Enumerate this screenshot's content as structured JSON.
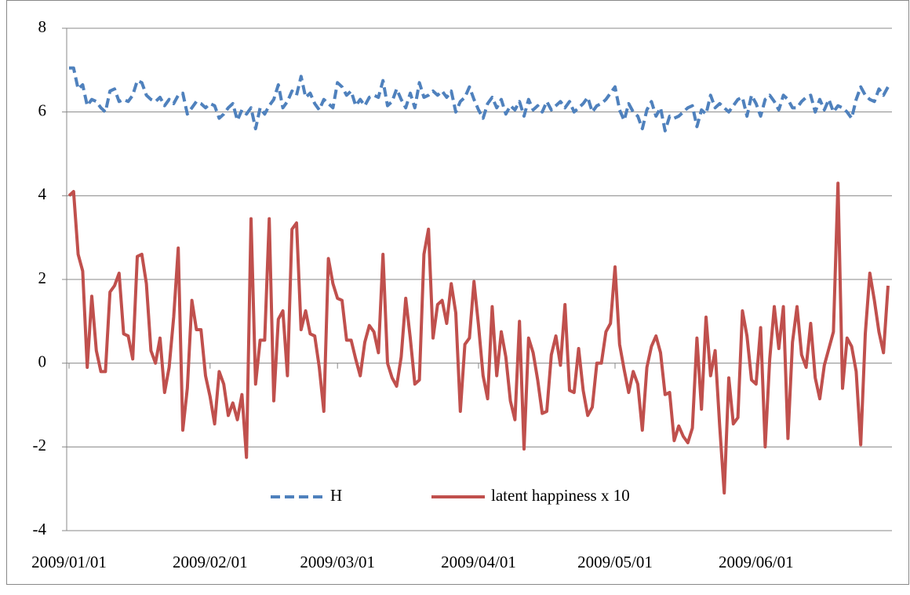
{
  "chart_data": {
    "type": "line",
    "x": [
      "2009/01/01",
      "2009/01/02",
      "2009/01/03",
      "2009/01/04",
      "2009/01/05",
      "2009/01/06",
      "2009/01/07",
      "2009/01/08",
      "2009/01/09",
      "2009/01/10",
      "2009/01/11",
      "2009/01/12",
      "2009/01/13",
      "2009/01/14",
      "2009/01/15",
      "2009/01/16",
      "2009/01/17",
      "2009/01/18",
      "2009/01/19",
      "2009/01/20",
      "2009/01/21",
      "2009/01/22",
      "2009/01/23",
      "2009/01/24",
      "2009/01/25",
      "2009/01/26",
      "2009/01/27",
      "2009/01/28",
      "2009/01/29",
      "2009/01/30",
      "2009/01/31",
      "2009/02/01",
      "2009/02/02",
      "2009/02/03",
      "2009/02/04",
      "2009/02/05",
      "2009/02/06",
      "2009/02/07",
      "2009/02/08",
      "2009/02/09",
      "2009/02/10",
      "2009/02/11",
      "2009/02/12",
      "2009/02/13",
      "2009/02/14",
      "2009/02/15",
      "2009/02/16",
      "2009/02/17",
      "2009/02/18",
      "2009/02/19",
      "2009/02/20",
      "2009/02/21",
      "2009/02/22",
      "2009/02/23",
      "2009/02/24",
      "2009/02/25",
      "2009/02/26",
      "2009/02/27",
      "2009/02/28",
      "2009/03/01",
      "2009/03/02",
      "2009/03/03",
      "2009/03/04",
      "2009/03/05",
      "2009/03/06",
      "2009/03/07",
      "2009/03/08",
      "2009/03/09",
      "2009/03/10",
      "2009/03/11",
      "2009/03/12",
      "2009/03/13",
      "2009/03/14",
      "2009/03/15",
      "2009/03/16",
      "2009/03/17",
      "2009/03/18",
      "2009/03/19",
      "2009/03/20",
      "2009/03/21",
      "2009/03/22",
      "2009/03/23",
      "2009/03/24",
      "2009/03/25",
      "2009/03/26",
      "2009/03/27",
      "2009/03/28",
      "2009/03/29",
      "2009/03/30",
      "2009/03/31",
      "2009/04/01",
      "2009/04/02",
      "2009/04/03",
      "2009/04/04",
      "2009/04/05",
      "2009/04/06",
      "2009/04/07",
      "2009/04/08",
      "2009/04/09",
      "2009/04/10",
      "2009/04/11",
      "2009/04/12",
      "2009/04/13",
      "2009/04/14",
      "2009/04/15",
      "2009/04/16",
      "2009/04/17",
      "2009/04/18",
      "2009/04/19",
      "2009/04/20",
      "2009/04/21",
      "2009/04/22",
      "2009/04/23",
      "2009/04/24",
      "2009/04/25",
      "2009/04/26",
      "2009/04/27",
      "2009/04/28",
      "2009/04/29",
      "2009/04/30",
      "2009/05/01",
      "2009/05/02",
      "2009/05/03",
      "2009/05/04",
      "2009/05/05",
      "2009/05/06",
      "2009/05/07",
      "2009/05/08",
      "2009/05/09",
      "2009/05/10",
      "2009/05/11",
      "2009/05/12",
      "2009/05/13",
      "2009/05/14",
      "2009/05/15",
      "2009/05/16",
      "2009/05/17",
      "2009/05/18",
      "2009/05/19",
      "2009/05/20",
      "2009/05/21",
      "2009/05/22",
      "2009/05/23",
      "2009/05/24",
      "2009/05/25",
      "2009/05/26",
      "2009/05/27",
      "2009/05/28",
      "2009/05/29",
      "2009/05/30",
      "2009/05/31",
      "2009/06/01",
      "2009/06/02",
      "2009/06/03",
      "2009/06/04",
      "2009/06/05",
      "2009/06/06",
      "2009/06/07",
      "2009/06/08",
      "2009/06/09",
      "2009/06/10",
      "2009/06/11",
      "2009/06/12",
      "2009/06/13",
      "2009/06/14",
      "2009/06/15",
      "2009/06/16",
      "2009/06/17",
      "2009/06/18",
      "2009/06/19",
      "2009/06/20",
      "2009/06/21",
      "2009/06/22",
      "2009/06/23",
      "2009/06/24",
      "2009/06/25",
      "2009/06/26",
      "2009/06/27",
      "2009/06/28",
      "2009/06/29",
      "2009/06/30"
    ],
    "series": [
      {
        "name": "H",
        "color": "#4f81bd",
        "dash": true,
        "values": [
          7.05,
          7.05,
          6.55,
          6.65,
          6.15,
          6.3,
          6.25,
          6.1,
          6.0,
          6.5,
          6.55,
          6.25,
          6.3,
          6.25,
          6.4,
          6.75,
          6.7,
          6.4,
          6.3,
          6.25,
          6.35,
          6.15,
          6.3,
          6.2,
          6.4,
          6.45,
          5.95,
          6.1,
          6.25,
          6.2,
          6.1,
          6.2,
          6.15,
          5.85,
          5.95,
          6.1,
          6.2,
          5.8,
          6.05,
          5.95,
          6.1,
          5.6,
          6.1,
          5.95,
          6.15,
          6.3,
          6.65,
          6.1,
          6.25,
          6.5,
          6.4,
          6.85,
          6.35,
          6.45,
          6.2,
          6.05,
          6.3,
          6.2,
          6.1,
          6.7,
          6.6,
          6.4,
          6.5,
          6.15,
          6.3,
          6.15,
          6.35,
          6.4,
          6.35,
          6.75,
          6.15,
          6.25,
          6.55,
          6.3,
          6.1,
          6.45,
          6.1,
          6.7,
          6.35,
          6.4,
          6.5,
          6.4,
          6.5,
          6.35,
          6.5,
          6.0,
          6.25,
          6.35,
          6.6,
          6.3,
          6.05,
          5.85,
          6.2,
          6.35,
          6.1,
          6.3,
          5.95,
          6.15,
          6.05,
          6.25,
          5.9,
          6.3,
          6.05,
          6.15,
          6.0,
          6.25,
          6.05,
          6.15,
          6.25,
          6.1,
          6.25,
          6.0,
          6.1,
          6.2,
          6.35,
          6.0,
          6.15,
          6.2,
          6.3,
          6.45,
          6.6,
          6.05,
          5.8,
          6.2,
          6.0,
          5.9,
          5.6,
          6.05,
          6.25,
          5.9,
          6.1,
          5.55,
          5.9,
          5.85,
          5.9,
          6.0,
          6.1,
          6.15,
          5.65,
          6.05,
          5.95,
          6.4,
          6.1,
          6.2,
          6.1,
          6.0,
          6.15,
          6.3,
          6.35,
          5.9,
          6.4,
          6.2,
          5.9,
          6.3,
          6.4,
          6.25,
          6.05,
          6.4,
          6.3,
          6.1,
          6.1,
          6.25,
          6.35,
          6.4,
          6.0,
          6.3,
          6.05,
          6.3,
          6.0,
          6.15,
          6.1,
          6.0,
          5.85,
          6.3,
          6.6,
          6.4,
          6.3,
          6.25,
          6.55,
          6.4,
          6.6
        ]
      },
      {
        "name": "latent happiness x 10",
        "color": "#c0504d",
        "dash": false,
        "values": [
          4.0,
          4.1,
          2.6,
          2.2,
          -0.1,
          1.6,
          0.3,
          -0.2,
          -0.2,
          1.7,
          1.85,
          2.15,
          0.7,
          0.65,
          0.1,
          2.55,
          2.6,
          1.9,
          0.3,
          0.0,
          0.6,
          -0.7,
          -0.1,
          1.1,
          2.75,
          -1.6,
          -0.6,
          1.5,
          0.8,
          0.8,
          -0.3,
          -0.8,
          -1.45,
          -0.2,
          -0.5,
          -1.25,
          -0.95,
          -1.35,
          -0.75,
          -2.25,
          3.45,
          -0.5,
          0.55,
          0.55,
          3.45,
          -0.9,
          1.05,
          1.25,
          -0.3,
          3.2,
          3.35,
          0.8,
          1.25,
          0.7,
          0.65,
          -0.1,
          -1.15,
          2.5,
          1.9,
          1.55,
          1.5,
          0.55,
          0.55,
          0.1,
          -0.3,
          0.5,
          0.9,
          0.75,
          0.25,
          2.6,
          0.0,
          -0.35,
          -0.55,
          0.15,
          1.55,
          0.6,
          -0.5,
          -0.4,
          2.6,
          3.2,
          0.6,
          1.4,
          1.5,
          0.95,
          1.9,
          1.2,
          -1.15,
          0.45,
          0.6,
          1.95,
          0.9,
          -0.3,
          -0.85,
          1.35,
          -0.3,
          0.75,
          0.15,
          -0.9,
          -1.35,
          1.0,
          -2.05,
          0.6,
          0.25,
          -0.4,
          -1.2,
          -1.15,
          0.2,
          0.65,
          -0.05,
          1.4,
          -0.65,
          -0.7,
          0.35,
          -0.65,
          -1.25,
          -1.05,
          0.0,
          0.0,
          0.75,
          0.95,
          2.3,
          0.45,
          -0.15,
          -0.7,
          -0.2,
          -0.5,
          -1.6,
          -0.1,
          0.4,
          0.65,
          0.25,
          -0.75,
          -0.7,
          -1.85,
          -1.5,
          -1.75,
          -1.9,
          -1.55,
          0.6,
          -1.1,
          1.1,
          -0.3,
          0.3,
          -1.5,
          -3.1,
          -0.35,
          -1.45,
          -1.3,
          1.25,
          0.65,
          -0.4,
          -0.5,
          0.85,
          -2.0,
          0.1,
          1.35,
          0.35,
          1.35,
          -1.8,
          0.5,
          1.35,
          0.2,
          -0.1,
          0.95,
          -0.35,
          -0.85,
          -0.05,
          0.35,
          0.75,
          4.3,
          -0.6,
          0.6,
          0.4,
          -0.2,
          -1.95,
          0.7,
          2.15,
          1.5,
          0.75,
          0.25,
          1.85
        ]
      }
    ],
    "xlim": [
      "2009/01/01",
      "2009/06/30"
    ],
    "xticks": [
      "2009/01/01",
      "2009/02/01",
      "2009/03/01",
      "2009/04/01",
      "2009/05/01",
      "2009/06/01"
    ],
    "ylim": [
      -4,
      8
    ],
    "yticks": [
      -4,
      -2,
      0,
      2,
      4,
      6,
      8
    ],
    "grid": true,
    "legend": "bottom"
  }
}
